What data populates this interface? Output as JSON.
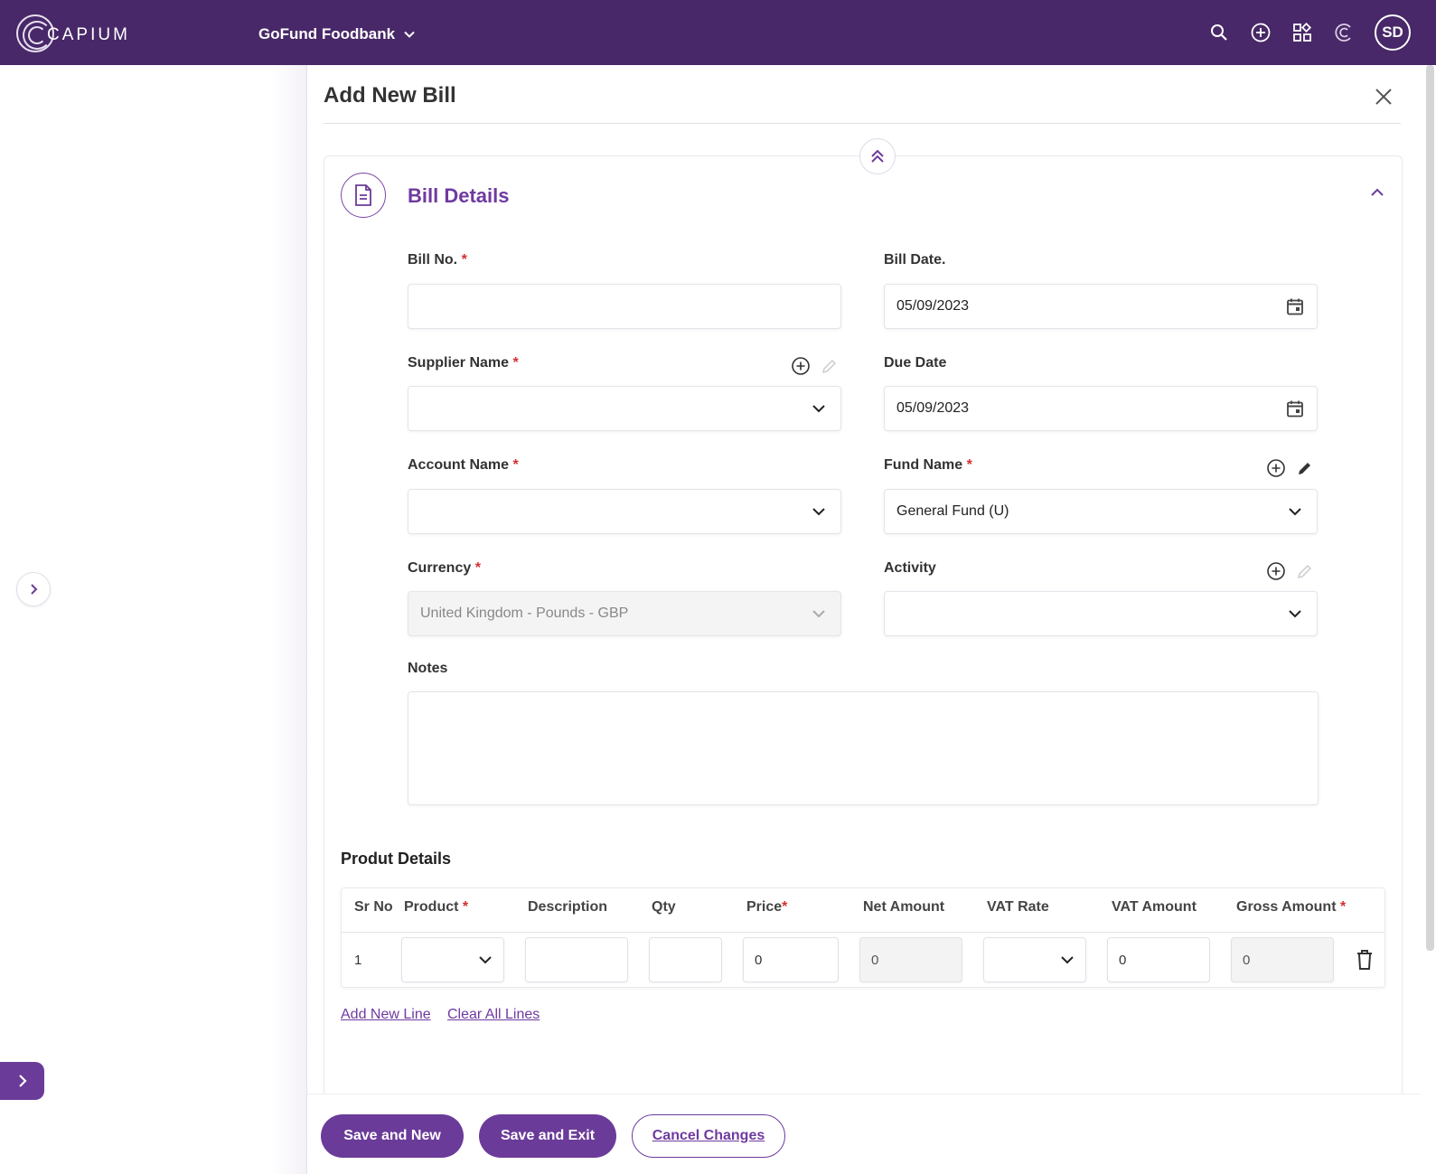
{
  "header": {
    "logo_text": "CAPIUM",
    "org_name": "GoFund Foodbank",
    "avatar_initials": "SD",
    "icons": [
      "search-icon",
      "add-circle-icon",
      "apps-grid-icon",
      "capium-c-icon"
    ]
  },
  "panel": {
    "title": "Add New Bill"
  },
  "bill_details": {
    "section_title": "Bill Details",
    "bill_no": {
      "label": "Bill No.",
      "required": "*",
      "value": ""
    },
    "bill_date": {
      "label": "Bill Date.",
      "value": "05/09/2023"
    },
    "supplier_name": {
      "label": "Supplier Name",
      "required": "*",
      "value": ""
    },
    "due_date": {
      "label": "Due Date",
      "value": "05/09/2023"
    },
    "account_name": {
      "label": "Account Name",
      "required": "*",
      "value": ""
    },
    "fund_name": {
      "label": "Fund Name",
      "required": "*",
      "value": "General Fund (U)"
    },
    "currency": {
      "label": "Currency",
      "required": "*",
      "value": "United Kingdom - Pounds - GBP"
    },
    "activity": {
      "label": "Activity",
      "value": ""
    },
    "notes": {
      "label": "Notes",
      "value": ""
    }
  },
  "product_details": {
    "title": "Produt Details",
    "columns": {
      "sr_no": "Sr No",
      "product": "Product",
      "description": "Description",
      "qty": "Qty",
      "price": "Price",
      "net_amount": "Net Amount",
      "vat_rate": "VAT Rate",
      "vat_amount": "VAT Amount",
      "gross_amount": "Gross Amount"
    },
    "required_mark": "*",
    "rows": [
      {
        "sr_no": "1",
        "product": "",
        "description": "",
        "qty": "",
        "price": "0",
        "net_amount": "0",
        "vat_rate": "",
        "vat_amount": "0",
        "gross_amount": "0"
      }
    ],
    "add_line": "Add New Line",
    "clear_lines": "Clear All Lines"
  },
  "footer": {
    "save_new": "Save and New",
    "save_exit": "Save and Exit",
    "cancel": "Cancel Changes"
  },
  "colors": {
    "header_bg": "#482868",
    "accent": "#6b3b99",
    "required": "#d3302f"
  }
}
